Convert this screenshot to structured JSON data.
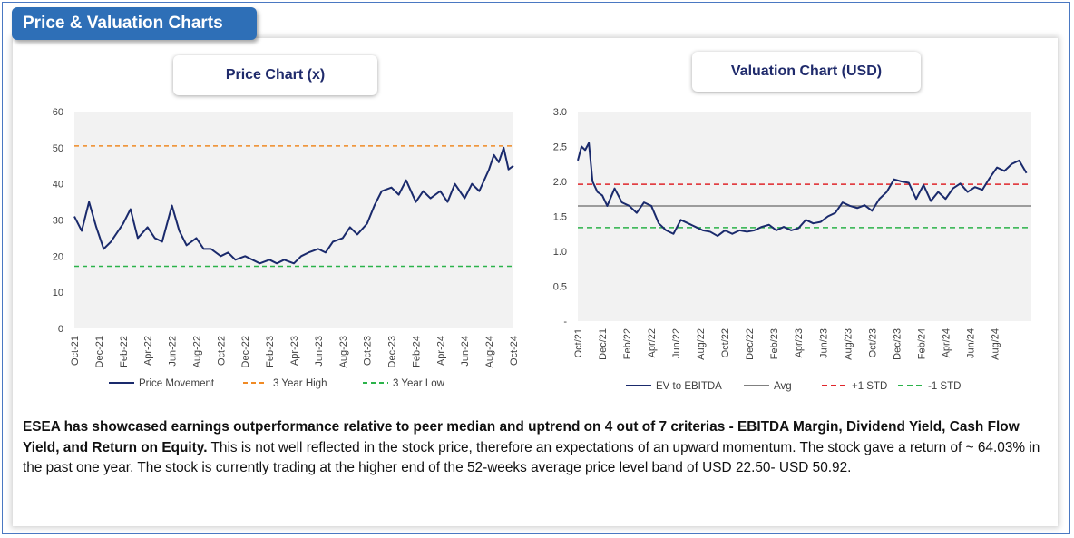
{
  "header": {
    "title": "Price & Valuation Charts"
  },
  "colors": {
    "accent": "#2e6fb7",
    "series_line": "#1a2a6c",
    "high_line": "#f08a24",
    "low_line": "#2bb34a",
    "std_plus": "#e0262b",
    "avg_line": "#808080"
  },
  "chart_data": [
    {
      "type": "line",
      "title": "Price Chart (x)",
      "xlabel": "",
      "ylabel": "",
      "ylim": [
        0,
        60
      ],
      "yticks": [
        "0",
        "10",
        "20",
        "30",
        "40",
        "50",
        "60"
      ],
      "xticks": [
        "Oct-21",
        "Dec-21",
        "Feb-22",
        "Apr-22",
        "Jun-22",
        "Aug-22",
        "Oct-22",
        "Dec-22",
        "Feb-23",
        "Apr-23",
        "Jun-23",
        "Aug-23",
        "Oct-23",
        "Dec-23",
        "Feb-24",
        "Apr-24",
        "Jun-24",
        "Aug-24",
        "Oct-24"
      ],
      "grid": false,
      "legend": "bottom",
      "series": [
        {
          "name": "Price Movement",
          "x": [
            0,
            0.3,
            0.6,
            0.9,
            1.2,
            1.5,
            1.8,
            2,
            2.3,
            2.6,
            3,
            3.3,
            3.6,
            4,
            4.3,
            4.6,
            5,
            5.3,
            5.6,
            6,
            6.3,
            6.6,
            7,
            7.3,
            7.6,
            8,
            8.3,
            8.6,
            9,
            9.3,
            9.6,
            10,
            10.3,
            10.6,
            11,
            11.3,
            11.6,
            12,
            12.3,
            12.6,
            13,
            13.3,
            13.6,
            14,
            14.3,
            14.6,
            15,
            15.3,
            15.6,
            16,
            16.3,
            16.6,
            17,
            17.2,
            17.4,
            17.6,
            17.8,
            18
          ],
          "y": [
            31,
            27,
            35,
            28,
            22,
            24,
            27,
            29,
            33,
            25,
            28,
            25,
            24,
            34,
            27,
            23,
            25,
            22,
            22,
            20,
            21,
            19,
            20,
            19,
            18,
            19,
            18,
            19,
            18,
            20,
            21,
            22,
            21,
            24,
            25,
            28,
            26,
            29,
            34,
            38,
            39,
            37,
            41,
            35,
            38,
            36,
            38,
            35,
            40,
            36,
            40,
            38,
            44,
            48,
            46,
            50,
            44,
            45
          ]
        },
        {
          "name": "3 Year High",
          "y": [
            50.5
          ]
        },
        {
          "name": "3 Year Low",
          "y": [
            17.2
          ]
        }
      ]
    },
    {
      "type": "line",
      "title": "Valuation Chart (USD)",
      "xlabel": "",
      "ylabel": "",
      "ylim": [
        0,
        3.0
      ],
      "yticks": [
        "-",
        "0.5",
        "1.0",
        "1.5",
        "2.0",
        "2.5",
        "3.0"
      ],
      "xticks": [
        "Oct/21",
        "Dec/21",
        "Feb/22",
        "Apr/22",
        "Jun/22",
        "Aug/22",
        "Oct/22",
        "Dec/22",
        "Feb/23",
        "Apr/23",
        "Jun/23",
        "Aug/23",
        "Oct/23",
        "Dec/23",
        "Feb/24",
        "Apr/24",
        "Jun/24",
        "Aug/24"
      ],
      "grid": false,
      "legend": "bottom",
      "series": [
        {
          "name": "EV to EBITDA",
          "x": [
            0,
            0.15,
            0.3,
            0.45,
            0.6,
            0.8,
            1,
            1.2,
            1.5,
            1.8,
            2.1,
            2.4,
            2.7,
            3,
            3.3,
            3.6,
            3.9,
            4.2,
            4.5,
            4.8,
            5.1,
            5.4,
            5.7,
            6,
            6.3,
            6.6,
            6.9,
            7.2,
            7.5,
            7.8,
            8.1,
            8.4,
            8.7,
            9,
            9.3,
            9.6,
            9.9,
            10.2,
            10.5,
            10.8,
            11.1,
            11.4,
            11.7,
            12,
            12.3,
            12.6,
            12.9,
            13.2,
            13.5,
            13.8,
            14.1,
            14.4,
            14.7,
            15,
            15.3,
            15.6,
            15.9,
            16.2,
            16.5,
            16.8,
            17.1,
            17.4,
            17.7,
            18,
            18.3
          ],
          "y": [
            2.3,
            2.5,
            2.45,
            2.55,
            2.0,
            1.85,
            1.8,
            1.65,
            1.9,
            1.7,
            1.65,
            1.55,
            1.7,
            1.65,
            1.4,
            1.3,
            1.25,
            1.45,
            1.4,
            1.35,
            1.3,
            1.28,
            1.22,
            1.3,
            1.25,
            1.3,
            1.28,
            1.3,
            1.35,
            1.38,
            1.3,
            1.35,
            1.3,
            1.33,
            1.45,
            1.4,
            1.42,
            1.5,
            1.55,
            1.7,
            1.65,
            1.62,
            1.66,
            1.58,
            1.75,
            1.85,
            2.03,
            2.0,
            1.98,
            1.75,
            1.95,
            1.72,
            1.85,
            1.75,
            1.9,
            1.97,
            1.85,
            1.92,
            1.88,
            2.05,
            2.2,
            2.15,
            2.25,
            2.3,
            2.12
          ]
        },
        {
          "name": "Avg",
          "y": [
            1.65
          ]
        },
        {
          "name": "+1 STD",
          "y": [
            1.96
          ]
        },
        {
          "name": "-1 STD",
          "y": [
            1.34
          ]
        }
      ]
    }
  ],
  "description": {
    "bold": "ESEA has showcased earnings outperformance relative to peer median and uptrend on 4 out of 7 criterias - EBITDA Margin, Dividend Yield, Cash Flow Yield, and Return on Equity.",
    "rest": " This is not well reflected in the stock price, therefore an expectations of an upward momentum. The stock gave a  return of ~ 64.03% in the past one year. The stock is currently trading at the higher end of the 52-weeks average price level band of USD 22.50- USD 50.92."
  }
}
